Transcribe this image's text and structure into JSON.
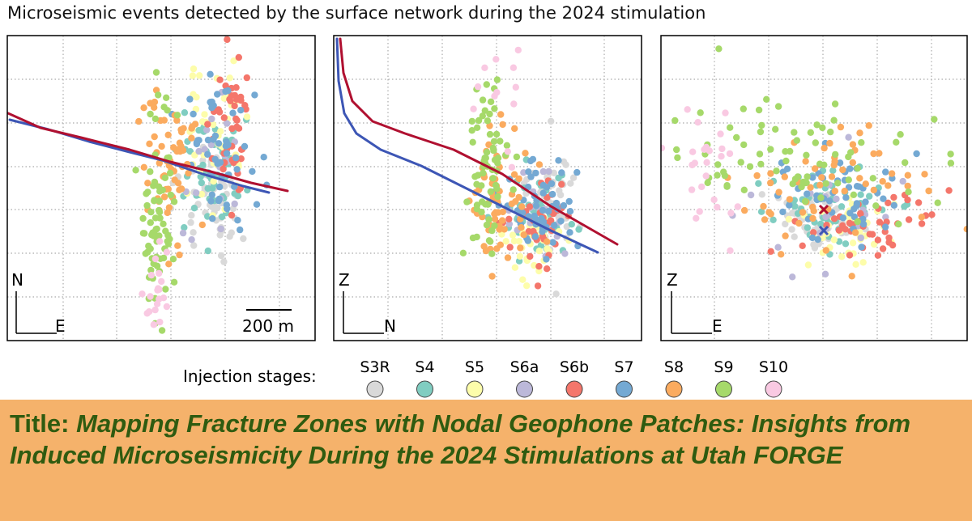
{
  "figure": {
    "title": "Microseismic events detected by the surface network during the 2024 stimulation",
    "scale_bar_label": "200 m",
    "legend_label": "Injection stages:"
  },
  "poster": {
    "title_prefix": "Title:",
    "title": "Mapping Fracture Zones with Nodal Geophone Patches: Insights from Induced Microseismicity During the 2024 Stimulations at Utah FORGE"
  },
  "chart_data": [
    {
      "type": "scatter",
      "view": "map",
      "axes": {
        "x": "E",
        "y": "N"
      },
      "grid": true,
      "title": "",
      "series": [
        {
          "name": "S3R",
          "color": "#d9d9d9",
          "cluster": {
            "cx": 265,
            "cy": 248,
            "sx": 22,
            "sy": 35,
            "n": 55
          }
        },
        {
          "name": "S4",
          "color": "#80cdc1",
          "cluster": {
            "cx": 258,
            "cy": 215,
            "sx": 22,
            "sy": 38,
            "n": 55
          }
        },
        {
          "name": "S5",
          "color": "#fdfdaa",
          "cluster": {
            "cx": 265,
            "cy": 175,
            "sx": 20,
            "sy": 40,
            "n": 45
          }
        },
        {
          "name": "S6a",
          "color": "#bcb8d9",
          "cluster": {
            "cx": 270,
            "cy": 210,
            "sx": 20,
            "sy": 40,
            "n": 20
          }
        },
        {
          "name": "S6b",
          "color": "#f4766b",
          "cluster": {
            "cx": 285,
            "cy": 150,
            "sx": 12,
            "sy": 45,
            "n": 45
          }
        },
        {
          "name": "S7",
          "color": "#74a9d3",
          "cluster": {
            "cx": 270,
            "cy": 190,
            "sx": 22,
            "sy": 50,
            "n": 55
          }
        },
        {
          "name": "S8",
          "color": "#fbab5f",
          "cluster": {
            "cx": 210,
            "cy": 215,
            "sx": 18,
            "sy": 45,
            "n": 65
          }
        },
        {
          "name": "S9",
          "color": "#a6d96a",
          "cluster": {
            "cx": 195,
            "cy": 260,
            "sx": 10,
            "sy": 75,
            "n": 75
          }
        },
        {
          "name": "S10",
          "color": "#f9c9e2",
          "cluster": {
            "cx": 193,
            "cy": 350,
            "sx": 8,
            "sy": 25,
            "n": 20
          }
        }
      ],
      "wells": [
        {
          "name": "blue",
          "color": "#3d56b5",
          "points": [
            [
              12,
              148
            ],
            [
              60,
              160
            ],
            [
              110,
              175
            ],
            [
              160,
              188
            ],
            [
              200,
              198
            ],
            [
              250,
              215
            ],
            [
              300,
              230
            ],
            [
              332,
              238
            ]
          ]
        },
        {
          "name": "red",
          "color": "#b01030",
          "points": [
            [
              10,
              140
            ],
            [
              50,
              158
            ],
            [
              100,
              170
            ],
            [
              160,
              185
            ],
            [
              210,
              200
            ],
            [
              260,
              212
            ],
            [
              310,
              226
            ],
            [
              355,
              236
            ]
          ]
        }
      ]
    },
    {
      "type": "scatter",
      "view": "section-N",
      "axes": {
        "x": "N",
        "y": "Z"
      },
      "grid": true,
      "title": "",
      "series": [
        {
          "name": "S3R",
          "color": "#d9d9d9",
          "cluster": {
            "cx": 680,
            "cy": 245,
            "sx": 18,
            "sy": 30,
            "n": 50
          }
        },
        {
          "name": "S4",
          "color": "#80cdc1",
          "cluster": {
            "cx": 660,
            "cy": 270,
            "sx": 20,
            "sy": 25,
            "n": 45
          }
        },
        {
          "name": "S5",
          "color": "#fdfdaa",
          "cluster": {
            "cx": 655,
            "cy": 300,
            "sx": 20,
            "sy": 20,
            "n": 40
          }
        },
        {
          "name": "S6a",
          "color": "#bcb8d9",
          "cluster": {
            "cx": 665,
            "cy": 265,
            "sx": 20,
            "sy": 35,
            "n": 20
          }
        },
        {
          "name": "S6b",
          "color": "#f4766b",
          "cluster": {
            "cx": 665,
            "cy": 280,
            "sx": 18,
            "sy": 30,
            "n": 40
          }
        },
        {
          "name": "S7",
          "color": "#74a9d3",
          "cluster": {
            "cx": 668,
            "cy": 260,
            "sx": 20,
            "sy": 30,
            "n": 55
          }
        },
        {
          "name": "S8",
          "color": "#fbab5f",
          "cluster": {
            "cx": 618,
            "cy": 250,
            "sx": 20,
            "sy": 40,
            "n": 60
          }
        },
        {
          "name": "S9",
          "color": "#a6d96a",
          "cluster": {
            "cx": 600,
            "cy": 200,
            "sx": 12,
            "sy": 50,
            "n": 65
          }
        },
        {
          "name": "S10",
          "color": "#f9c9e2",
          "cluster": {
            "cx": 615,
            "cy": 105,
            "sx": 20,
            "sy": 40,
            "n": 12
          }
        }
      ],
      "wells": [
        {
          "name": "blue",
          "color": "#3d56b5",
          "points": [
            [
              416,
              48
            ],
            [
              418,
              100
            ],
            [
              425,
              140
            ],
            [
              440,
              165
            ],
            [
              470,
              185
            ],
            [
              520,
              205
            ],
            [
              570,
              230
            ],
            [
              620,
              255
            ],
            [
              680,
              285
            ],
            [
              738,
              312
            ]
          ]
        },
        {
          "name": "red",
          "color": "#b01030",
          "points": [
            [
              420,
              48
            ],
            [
              424,
              90
            ],
            [
              435,
              125
            ],
            [
              460,
              150
            ],
            [
              500,
              165
            ],
            [
              560,
              185
            ],
            [
              620,
              215
            ],
            [
              680,
              255
            ],
            [
              762,
              302
            ]
          ]
        }
      ]
    },
    {
      "type": "scatter",
      "view": "section-E",
      "axes": {
        "x": "E",
        "y": "Z"
      },
      "grid": true,
      "title": "",
      "series": [
        {
          "name": "S3R",
          "color": "#d9d9d9",
          "cluster": {
            "cx": 1010,
            "cy": 268,
            "sx": 22,
            "sy": 18,
            "n": 50
          }
        },
        {
          "name": "S4",
          "color": "#80cdc1",
          "cluster": {
            "cx": 1020,
            "cy": 262,
            "sx": 45,
            "sy": 22,
            "n": 55
          }
        },
        {
          "name": "S5",
          "color": "#fdfdaa",
          "cluster": {
            "cx": 1050,
            "cy": 290,
            "sx": 35,
            "sy": 20,
            "n": 40
          }
        },
        {
          "name": "S6a",
          "color": "#bcb8d9",
          "cluster": {
            "cx": 1030,
            "cy": 270,
            "sx": 50,
            "sy": 35,
            "n": 20
          }
        },
        {
          "name": "S6b",
          "color": "#f4766b",
          "cluster": {
            "cx": 1080,
            "cy": 275,
            "sx": 45,
            "sy": 25,
            "n": 45
          }
        },
        {
          "name": "S7",
          "color": "#74a9d3",
          "cluster": {
            "cx": 1040,
            "cy": 240,
            "sx": 45,
            "sy": 30,
            "n": 55
          }
        },
        {
          "name": "S8",
          "color": "#fbab5f",
          "cluster": {
            "cx": 1030,
            "cy": 220,
            "sx": 55,
            "sy": 40,
            "n": 60
          }
        },
        {
          "name": "S9",
          "color": "#a6d96a",
          "cluster": {
            "cx": 990,
            "cy": 195,
            "sx": 90,
            "sy": 45,
            "n": 80
          }
        },
        {
          "name": "S10",
          "color": "#f9c9e2",
          "cluster": {
            "cx": 880,
            "cy": 210,
            "sx": 25,
            "sy": 45,
            "n": 25
          }
        }
      ],
      "wells": [],
      "markers": [
        {
          "name": "red-x",
          "color": "#b01030",
          "x": 1017,
          "y": 259
        },
        {
          "name": "blue-x",
          "color": "#3d56b5",
          "x": 1017,
          "y": 285
        }
      ]
    }
  ],
  "legend": [
    {
      "name": "S3R",
      "color": "#d9d9d9"
    },
    {
      "name": "S4",
      "color": "#80cdc1"
    },
    {
      "name": "S5",
      "color": "#fdfdaa"
    },
    {
      "name": "S6a",
      "color": "#bcb8d9"
    },
    {
      "name": "S6b",
      "color": "#f4766b"
    },
    {
      "name": "S7",
      "color": "#74a9d3"
    },
    {
      "name": "S8",
      "color": "#fbab5f"
    },
    {
      "name": "S9",
      "color": "#a6d96a"
    },
    {
      "name": "S10",
      "color": "#f9c9e2"
    }
  ]
}
